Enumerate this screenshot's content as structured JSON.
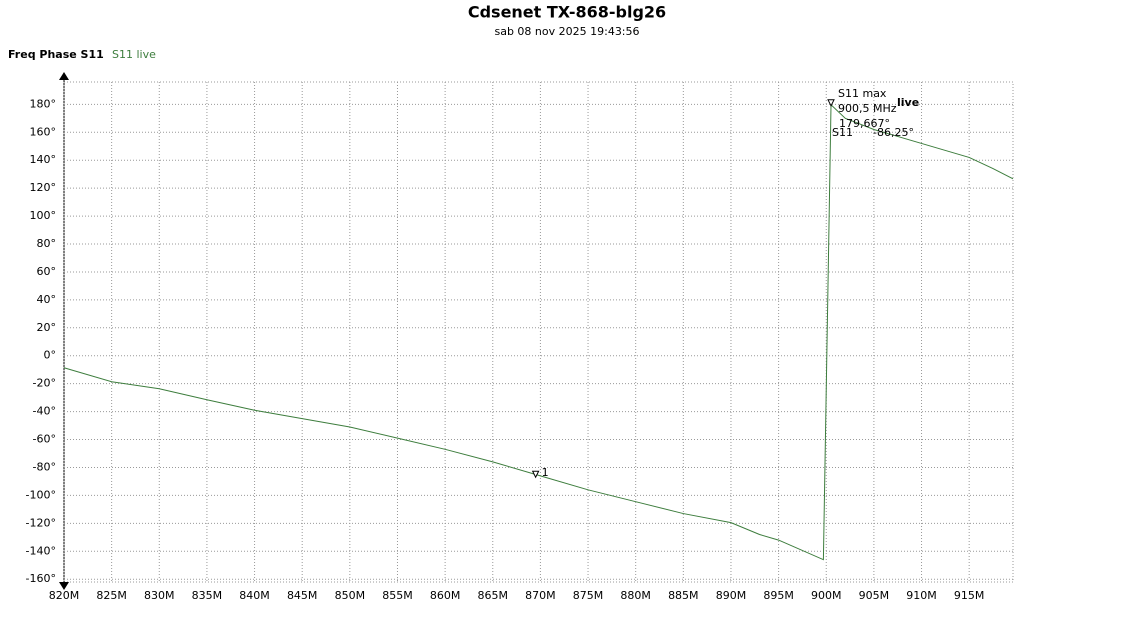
{
  "chart_data": {
    "type": "line",
    "title": "Cdsenet TX-868-blg26",
    "subtitle": "sab 08 nov 2025 19:43:56",
    "y_label": "Freq Phase S11",
    "grid": true,
    "xlim": [
      820,
      919.6
    ],
    "ylim": [
      -162,
      196
    ],
    "xticks": [
      {
        "value": 820,
        "label": "820M"
      },
      {
        "value": 825,
        "label": "825M"
      },
      {
        "value": 830,
        "label": "830M"
      },
      {
        "value": 835,
        "label": "835M"
      },
      {
        "value": 840,
        "label": "840M"
      },
      {
        "value": 845,
        "label": "845M"
      },
      {
        "value": 850,
        "label": "850M"
      },
      {
        "value": 855,
        "label": "855M"
      },
      {
        "value": 860,
        "label": "860M"
      },
      {
        "value": 865,
        "label": "865M"
      },
      {
        "value": 870,
        "label": "870M"
      },
      {
        "value": 875,
        "label": "875M"
      },
      {
        "value": 880,
        "label": "880M"
      },
      {
        "value": 885,
        "label": "885M"
      },
      {
        "value": 890,
        "label": "890M"
      },
      {
        "value": 895,
        "label": "895M"
      },
      {
        "value": 900,
        "label": "900M"
      },
      {
        "value": 905,
        "label": "905M"
      },
      {
        "value": 910,
        "label": "910M"
      },
      {
        "value": 915,
        "label": "915M"
      }
    ],
    "yticks": [
      {
        "value": 180,
        "label": "180°"
      },
      {
        "value": 160,
        "label": "160°"
      },
      {
        "value": 140,
        "label": "140°"
      },
      {
        "value": 120,
        "label": "120°"
      },
      {
        "value": 100,
        "label": "100°"
      },
      {
        "value": 80,
        "label": "80°"
      },
      {
        "value": 60,
        "label": "60°"
      },
      {
        "value": 40,
        "label": "40°"
      },
      {
        "value": 20,
        "label": "20°"
      },
      {
        "value": 0,
        "label": "0°"
      },
      {
        "value": -20,
        "label": "-20°"
      },
      {
        "value": -40,
        "label": "-40°"
      },
      {
        "value": -60,
        "label": "-60°"
      },
      {
        "value": -80,
        "label": "-80°"
      },
      {
        "value": -100,
        "label": "-100°"
      },
      {
        "value": -120,
        "label": "-120°"
      },
      {
        "value": -140,
        "label": "-140°"
      },
      {
        "value": -160,
        "label": "-160°"
      }
    ],
    "x": [
      820,
      825,
      830,
      835,
      840,
      845,
      850,
      855,
      860,
      865,
      870,
      875,
      880,
      885,
      890,
      893,
      895,
      899.7,
      900.5,
      902,
      905,
      910,
      912.5,
      915,
      917.5,
      919.6
    ],
    "series": [
      {
        "name": "S11 live",
        "color": "#3d7d3d",
        "values": [
          -8.6,
          -18.6,
          -23.6,
          -31.5,
          -39,
          -45,
          -51,
          -59,
          -67,
          -76,
          -86,
          -96,
          -104.5,
          -113,
          -119.5,
          -128,
          -132,
          -146,
          179.667,
          170,
          162,
          152,
          147,
          142,
          134,
          126.7
        ]
      }
    ],
    "markers": [
      {
        "label": "S11 max",
        "x": 900.5,
        "y": 179.667,
        "value_labels": [
          "900,5 MHz",
          "179,667°"
        ]
      },
      {
        "label": "1",
        "x": 869.5,
        "y": -86.25,
        "series": "S11",
        "value_label": "-86,25°"
      }
    ],
    "annotations": [
      "live"
    ]
  }
}
